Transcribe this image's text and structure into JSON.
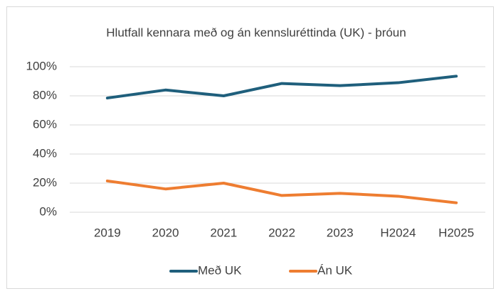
{
  "chart_data": {
    "type": "line",
    "title": "Hlutfall kennara með og án kennsluréttinda (UK) - þróun",
    "categories": [
      "2019",
      "2020",
      "2021",
      "2022",
      "2023",
      "H2024",
      "H2025"
    ],
    "series": [
      {
        "name": "Með UK",
        "color": "#1f5f7c",
        "values": [
          78.5,
          84,
          80,
          88.5,
          87,
          89,
          93.5
        ]
      },
      {
        "name": "Án UK",
        "color": "#ee7d31",
        "values": [
          21.5,
          16,
          20,
          11.5,
          13,
          11,
          6.5
        ]
      }
    ],
    "ylim": [
      0,
      100
    ],
    "yticks": [
      {
        "value": 0,
        "label": "0%"
      },
      {
        "value": 20,
        "label": "20%"
      },
      {
        "value": 40,
        "label": "40%"
      },
      {
        "value": 60,
        "label": "60%"
      },
      {
        "value": 80,
        "label": "80%"
      },
      {
        "value": 100,
        "label": "100%"
      }
    ],
    "grid": true,
    "legend": "bottom"
  }
}
